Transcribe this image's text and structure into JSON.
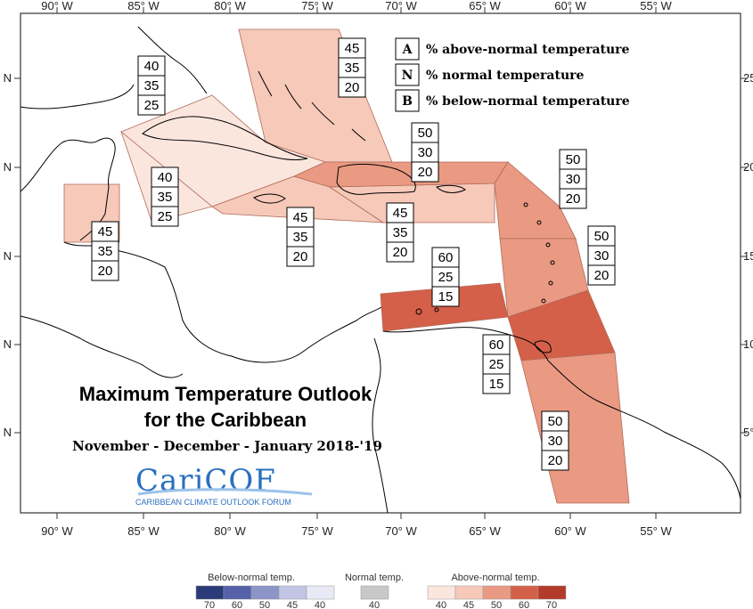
{
  "title": {
    "line1": "Maximum Temperature Outlook",
    "line2": "for the Caribbean",
    "season": "November - December - January 2018-'19"
  },
  "logo": {
    "name": "CariCOF",
    "tagline": "CARIBBEAN CLIMATE OUTLOOK FORUM"
  },
  "axes": {
    "lon_labels": [
      "90° W",
      "85° W",
      "80° W",
      "75° W",
      "70° W",
      "65° W",
      "60° W",
      "55° W"
    ],
    "lat_labels_left": [
      "N",
      "N",
      "N",
      "N",
      "N"
    ],
    "lat_labels_right": [
      "25",
      "20",
      "15",
      "10",
      "5°"
    ]
  },
  "key": [
    {
      "letter": "A",
      "text": "% above-normal temperature"
    },
    {
      "letter": "N",
      "text": "% normal temperature"
    },
    {
      "letter": "B",
      "text": "% below-normal temperature"
    }
  ],
  "regions": [
    {
      "name": "bahamas",
      "A": 45,
      "N": 35,
      "B": 20,
      "color": "#f6c9b9"
    },
    {
      "name": "cuba",
      "A": 40,
      "N": 35,
      "B": 25,
      "color": "#fbe6de"
    },
    {
      "name": "cayman-jamaica",
      "A": 40,
      "N": 35,
      "B": 25,
      "color": "#fbe6de"
    },
    {
      "name": "belize",
      "A": 45,
      "N": 35,
      "B": 20,
      "color": "#f6c9b9"
    },
    {
      "name": "jamaica-south",
      "A": 45,
      "N": 35,
      "B": 20,
      "color": "#f6c9b9"
    },
    {
      "name": "puerto-rico",
      "A": 45,
      "N": 35,
      "B": 20,
      "color": "#f6c9b9"
    },
    {
      "name": "hispaniola",
      "A": 50,
      "N": 30,
      "B": 20,
      "color": "#ea9a82"
    },
    {
      "name": "leeward-islands",
      "A": 50,
      "N": 30,
      "B": 20,
      "color": "#ea9a82"
    },
    {
      "name": "windward-islands",
      "A": 50,
      "N": 30,
      "B": 20,
      "color": "#ea9a82"
    },
    {
      "name": "abc-islands",
      "A": 60,
      "N": 25,
      "B": 15,
      "color": "#d46049"
    },
    {
      "name": "trinidad",
      "A": 60,
      "N": 25,
      "B": 15,
      "color": "#d46049"
    },
    {
      "name": "guianas",
      "A": 50,
      "N": 30,
      "B": 20,
      "color": "#ea9a82"
    }
  ],
  "scale": {
    "below": {
      "label": "Below-normal temp.",
      "values": [
        "70",
        "60",
        "50",
        "45",
        "40"
      ],
      "colors": [
        "#2b3a78",
        "#5561a8",
        "#8d94c8",
        "#c2c5e4",
        "#e9eaf6"
      ]
    },
    "normal": {
      "label": "Normal temp.",
      "values": [
        "40"
      ],
      "colors": [
        "#c8c8c8"
      ]
    },
    "above": {
      "label": "Above-normal temp.",
      "values": [
        "40",
        "45",
        "50",
        "60",
        "70"
      ],
      "colors": [
        "#fbe6de",
        "#f6c9b9",
        "#ea9a82",
        "#d46049",
        "#b33a2a"
      ]
    }
  }
}
